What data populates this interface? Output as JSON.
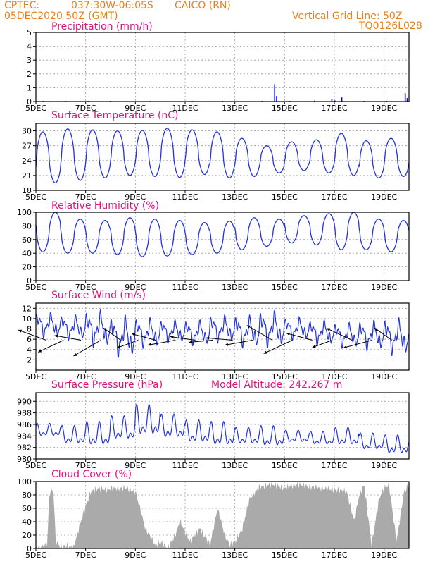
{
  "header": {
    "source": "CPTEC:",
    "coords": "037:30W-06:05S",
    "location": "CAICO (RN)",
    "run": "05DEC2020 50Z (GMT)",
    "grid_line": "Vertical Grid Line: 50Z",
    "code": "TQ0126L028"
  },
  "chart_data": [
    {
      "id": "precipitation",
      "type": "bar",
      "title": "Precipitation (mm/h)",
      "ylim": [
        0,
        5
      ],
      "yticks": [
        0,
        1,
        2,
        3,
        4,
        5
      ],
      "xticks": [
        "5DEC",
        "7DEC",
        "9DEC",
        "11DEC",
        "13DEC",
        "15DEC",
        "17DEC",
        "19DEC"
      ],
      "x_range_days": [
        0,
        15
      ],
      "color": "#0000ff",
      "grid": true,
      "bars": [
        {
          "day": 0.3,
          "value": 0.05
        },
        {
          "day": 1.2,
          "value": 0.04
        },
        {
          "day": 2.1,
          "value": 0.04
        },
        {
          "day": 3.0,
          "value": 0.05
        },
        {
          "day": 4.6,
          "value": 0.04
        },
        {
          "day": 6.3,
          "value": 0.04
        },
        {
          "day": 7.5,
          "value": 0.05
        },
        {
          "day": 9.1,
          "value": 0.05
        },
        {
          "day": 9.6,
          "value": 1.25
        },
        {
          "day": 9.68,
          "value": 0.4
        },
        {
          "day": 10.2,
          "value": 0.05
        },
        {
          "day": 11.2,
          "value": 0.06
        },
        {
          "day": 11.9,
          "value": 0.18
        },
        {
          "day": 12.02,
          "value": 0.08
        },
        {
          "day": 12.3,
          "value": 0.3
        },
        {
          "day": 13.2,
          "value": 0.05
        },
        {
          "day": 14.1,
          "value": 0.05
        },
        {
          "day": 14.85,
          "value": 0.6
        },
        {
          "day": 14.93,
          "value": 0.25
        }
      ]
    },
    {
      "id": "temperature",
      "type": "line",
      "title": "Surface Temperature (nC)",
      "ylim": [
        18,
        31.5
      ],
      "yticks": [
        18,
        21,
        24,
        27,
        30
      ],
      "xticks": [
        "5DEC",
        "7DEC",
        "9DEC",
        "11DEC",
        "13DEC",
        "15DEC",
        "17DEC",
        "19DEC"
      ],
      "x_range_days": [
        0,
        15
      ],
      "color": "#2233dd",
      "grid": true,
      "daily_min": [
        19.5,
        20.0,
        20.5,
        21.0,
        20.8,
        20.6,
        21.2,
        20.5,
        20.8,
        21.5,
        22.0,
        21.5,
        21.0,
        20.5,
        20.8,
        21.5
      ],
      "daily_max": [
        29.8,
        30.4,
        30.2,
        30.0,
        30.1,
        30.5,
        30.2,
        29.8,
        28.5,
        27.0,
        27.8,
        28.2,
        29.5,
        28.0,
        28.5,
        28.2
      ]
    },
    {
      "id": "humidity",
      "type": "line",
      "title": "Relative Humidity (%)",
      "ylim": [
        0,
        100
      ],
      "yticks": [
        0,
        20,
        40,
        60,
        80,
        100
      ],
      "xticks": [
        "5DEC",
        "7DEC",
        "9DEC",
        "11DEC",
        "13DEC",
        "15DEC",
        "17DEC",
        "19DEC"
      ],
      "x_range_days": [
        0,
        15
      ],
      "color": "#2233dd",
      "grid": true,
      "daily_max": [
        100,
        90,
        88,
        92,
        90,
        88,
        85,
        87,
        92,
        90,
        95,
        98,
        100,
        90,
        88,
        86
      ],
      "daily_min": [
        42,
        40,
        40,
        38,
        35,
        36,
        38,
        40,
        45,
        50,
        55,
        52,
        45,
        45,
        42,
        48
      ]
    },
    {
      "id": "wind",
      "type": "line",
      "title": "Surface Wind (m/s)",
      "ylim": [
        0,
        13
      ],
      "yticks": [
        2,
        4,
        6,
        8,
        10,
        12
      ],
      "xticks": [
        "5DEC",
        "7DEC",
        "9DEC",
        "11DEC",
        "13DEC",
        "15DEC",
        "17DEC",
        "19DEC"
      ],
      "x_range_days": [
        0,
        15
      ],
      "color": "#2233dd",
      "grid": true,
      "daily_max": [
        11.5,
        11.0,
        12.0,
        11.0,
        10.5,
        10.0,
        10.0,
        11.0,
        11.0,
        12.0,
        10.5,
        10.0,
        9.5,
        10.0,
        10.5,
        8.5
      ],
      "daily_min": [
        6.0,
        5.5,
        4.0,
        2.0,
        4.0,
        5.0,
        4.5,
        5.0,
        4.0,
        4.0,
        5.5,
        4.5,
        4.0,
        3.5,
        2.5,
        3.0
      ],
      "vectors": [
        {
          "day": 0.3,
          "length": 42,
          "angle": 20
        },
        {
          "day": 1.0,
          "length": 40,
          "angle": -25
        },
        {
          "day": 1.7,
          "length": 38,
          "angle": 10
        },
        {
          "day": 2.5,
          "length": 45,
          "angle": -30
        },
        {
          "day": 3.3,
          "length": 30,
          "angle": 35
        },
        {
          "day": 4.0,
          "length": 32,
          "angle": -20
        },
        {
          "day": 4.7,
          "length": 35,
          "angle": 15
        },
        {
          "day": 5.5,
          "length": 40,
          "angle": -10
        },
        {
          "day": 6.3,
          "length": 36,
          "angle": 8
        },
        {
          "day": 7.0,
          "length": 34,
          "angle": -5
        },
        {
          "day": 7.8,
          "length": 38,
          "angle": 5
        },
        {
          "day": 8.6,
          "length": 40,
          "angle": -10
        },
        {
          "day": 9.4,
          "length": 42,
          "angle": 30
        },
        {
          "day": 10.2,
          "length": 45,
          "angle": -25
        },
        {
          "day": 11.0,
          "length": 38,
          "angle": 15
        },
        {
          "day": 11.8,
          "length": 30,
          "angle": -20
        },
        {
          "day": 12.6,
          "length": 40,
          "angle": 25
        },
        {
          "day": 13.4,
          "length": 42,
          "angle": -15
        },
        {
          "day": 14.2,
          "length": 30,
          "angle": 35
        }
      ]
    },
    {
      "id": "pressure",
      "type": "line",
      "title": "Surface Pressure (hPa)",
      "annotation": "Model Altitude: 242.267 m",
      "ylim": [
        980,
        991.5
      ],
      "yticks": [
        980,
        982,
        984,
        986,
        988,
        990
      ],
      "xticks": [
        "5DEC",
        "7DEC",
        "9DEC",
        "11DEC",
        "13DEC",
        "15DEC",
        "17DEC",
        "19DEC"
      ],
      "x_range_days": [
        0,
        15
      ],
      "color": "#2233dd",
      "grid": true,
      "daily_max": [
        986.2,
        985.8,
        986.5,
        987.5,
        989.5,
        987.8,
        986.8,
        986.5,
        985.5,
        985.8,
        985.0,
        984.8,
        985.5,
        984.5,
        984.2,
        983.5
      ],
      "daily_min": [
        983.5,
        982.0,
        981.5,
        982.5,
        983.0,
        982.8,
        982.0,
        981.5,
        982.0,
        981.5,
        982.5,
        982.0,
        981.8,
        981.0,
        980.2,
        980.0
      ]
    },
    {
      "id": "cloud",
      "type": "area",
      "title": "Cloud Cover (%)",
      "ylim": [
        0,
        100
      ],
      "yticks": [
        0,
        20,
        40,
        60,
        80,
        100
      ],
      "xticks": [
        "5DEC",
        "7DEC",
        "9DEC",
        "11DEC",
        "13DEC",
        "15DEC",
        "17DEC",
        "19DEC"
      ],
      "x_range_days": [
        0,
        15
      ],
      "color": "#aaaaaa",
      "grid": true,
      "profile_days": [
        0,
        0.2,
        0.45,
        0.55,
        0.7,
        0.8,
        1.0,
        1.2,
        1.5,
        1.8,
        2.2,
        2.5,
        2.8,
        3.2,
        3.6,
        4.0,
        4.4,
        4.8,
        5.0,
        5.3,
        5.6,
        5.8,
        6.2,
        6.6,
        7.0,
        7.3,
        7.6,
        7.8,
        8.0,
        8.3,
        8.6,
        9.0,
        9.5,
        10.0,
        10.5,
        11.0,
        11.5,
        12.0,
        12.5,
        12.8,
        13.0,
        13.2,
        13.5,
        13.8,
        14.0,
        14.2,
        14.5,
        14.8,
        15.0
      ],
      "profile_values": [
        0,
        2,
        5,
        85,
        88,
        10,
        2,
        5,
        0,
        40,
        85,
        90,
        88,
        90,
        90,
        85,
        30,
        5,
        10,
        0,
        20,
        40,
        10,
        30,
        5,
        60,
        20,
        5,
        10,
        30,
        75,
        92,
        96,
        90,
        96,
        92,
        90,
        88,
        85,
        40,
        80,
        95,
        5,
        75,
        90,
        95,
        10,
        85,
        95
      ]
    }
  ]
}
